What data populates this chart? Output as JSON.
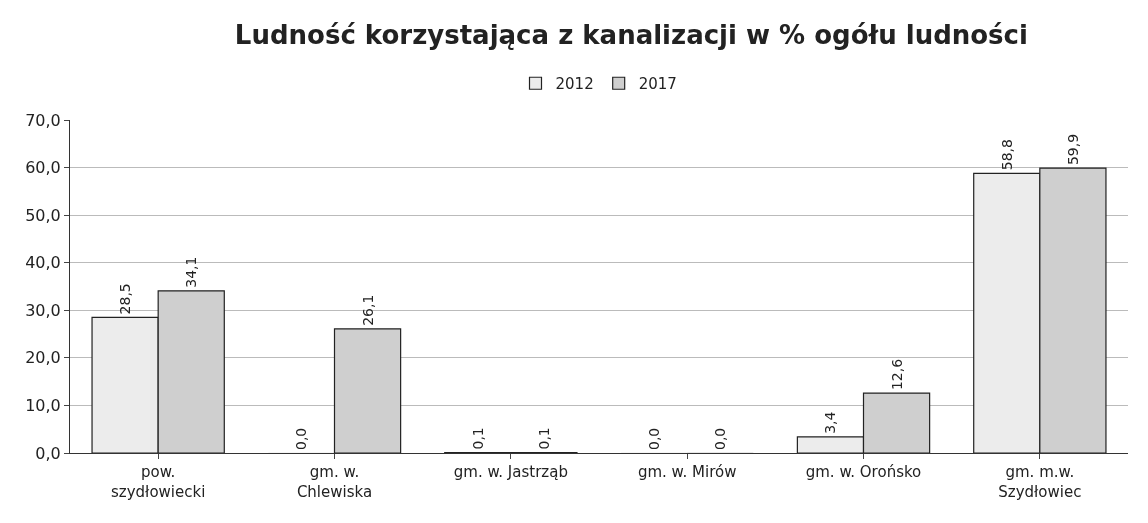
{
  "chart_data": {
    "type": "bar",
    "title": "Ludność korzystająca z kanalizacji w % ogółu ludności",
    "categories": [
      "pow. szydłowiecki",
      "gm. w. Chlewiska",
      "gm. w. Jastrząb",
      "gm. w. Mirów",
      "gm. w. Orońsko",
      "gm. m.w. Szydłowiec"
    ],
    "series": [
      {
        "name": "2012",
        "color": "#ececec",
        "values": [
          28.5,
          0.0,
          0.1,
          0.0,
          3.4,
          58.8
        ],
        "value_labels": [
          "28,5",
          "0,0",
          "0,1",
          "0,0",
          "3,4",
          "58,8"
        ]
      },
      {
        "name": "2017",
        "color": "#cfcfcf",
        "values": [
          34.1,
          26.1,
          0.1,
          0.0,
          12.6,
          59.9
        ],
        "value_labels": [
          "34,1",
          "26,1",
          "0,1",
          "0,0",
          "12,6",
          "59,9"
        ]
      }
    ],
    "ylim": [
      0,
      70
    ],
    "yticks": [
      {
        "value": 0,
        "label": "0,0"
      },
      {
        "value": 10,
        "label": "10,0"
      },
      {
        "value": 20,
        "label": "20,0"
      },
      {
        "value": 30,
        "label": "30,0"
      },
      {
        "value": 40,
        "label": "40,0"
      },
      {
        "value": 50,
        "label": "50,0"
      },
      {
        "value": 60,
        "label": "60,0"
      },
      {
        "value": 70,
        "label": "70,0"
      }
    ],
    "grid": "y",
    "legend": "top"
  }
}
